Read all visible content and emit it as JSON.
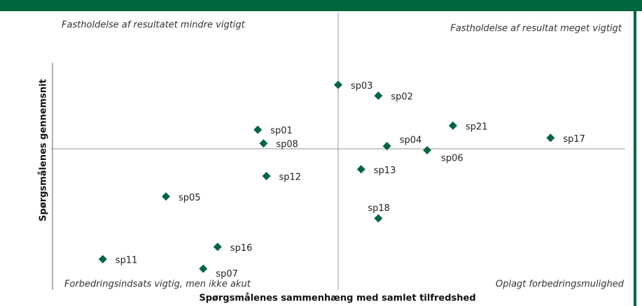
{
  "chart_data": {
    "type": "scatter",
    "x_label": "Spørgsmålenes sammenhæng med samlet tilfredshed",
    "y_label": "Spørgsmålenes gennemsnit",
    "annotations": [
      "Fastholdelse af resultatet mindre vigtigt",
      "Fastholdelse af resultat meget vigtigt",
      "Forbedringsindsats vigtig, men ikke akut",
      "Oplagt forbedringsmulighed"
    ],
    "xlim": [
      -1,
      1
    ],
    "ylim": [
      -1,
      1
    ],
    "color": "#00663d",
    "point_labels": [
      "sp03",
      "sp02",
      "sp01",
      "sp08",
      "sp21",
      "sp17",
      "sp04",
      "sp06",
      "sp13",
      "sp12",
      "sp05",
      "sp18",
      "sp16",
      "sp11",
      "sp07"
    ],
    "x": [
      0,
      0.14,
      -0.28,
      -0.26,
      0.4,
      0.74,
      0.17,
      0.31,
      0.08,
      -0.25,
      -0.6,
      0.14,
      -0.42,
      -0.82,
      -0.47
    ],
    "values": [
      0.47,
      0.39,
      0.14,
      0.04,
      0.17,
      0.08,
      0.02,
      -0.01,
      -0.15,
      -0.2,
      -0.35,
      -0.51,
      -0.72,
      -0.81,
      -0.88
    ]
  }
}
